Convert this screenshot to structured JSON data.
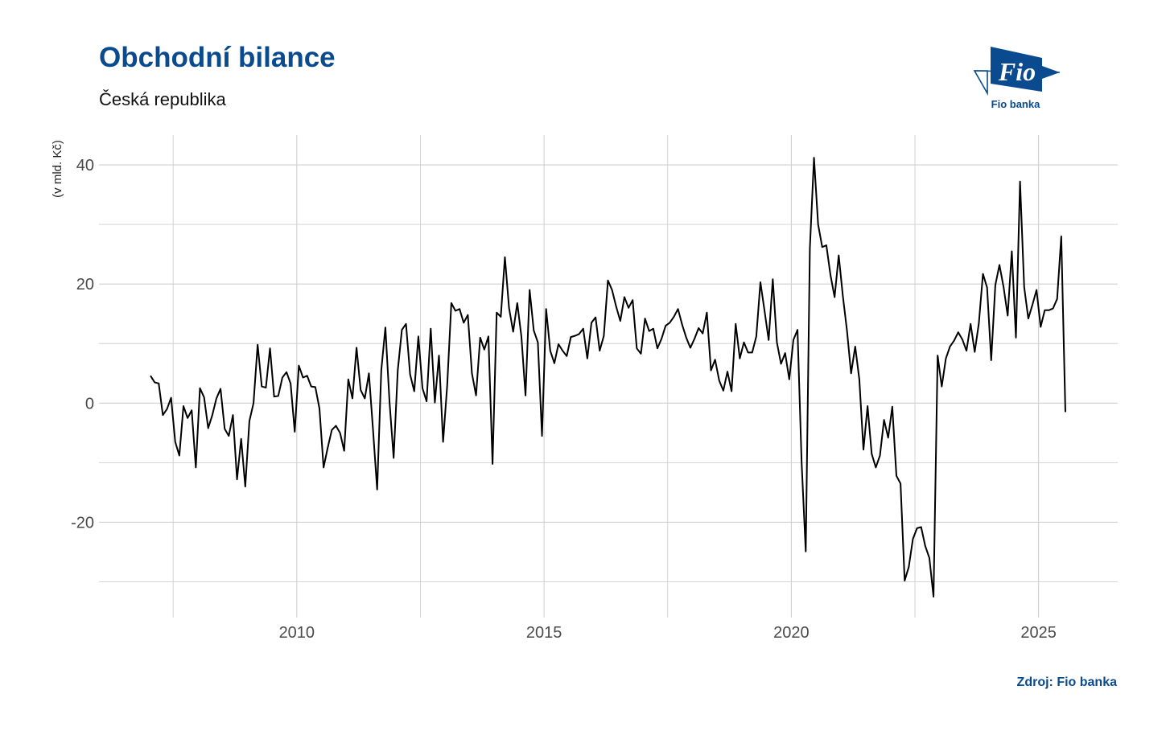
{
  "header": {
    "title": "Obchodní bilance",
    "subtitle": "Česká republika"
  },
  "logo": {
    "text": "Fio",
    "caption": "Fio banka",
    "color": "#0a4a8f",
    "icon": "fio-logo-icon"
  },
  "footer": {
    "source": "Zdroj: Fio banka"
  },
  "chart_data": {
    "type": "line",
    "title": "Obchodní bilance",
    "subtitle": "Česká republika",
    "xlabel": "",
    "ylabel": "(v mld. Kč)",
    "xlim": [
      2006.0,
      2026.6
    ],
    "ylim": [
      -36,
      45
    ],
    "xticks": [
      2010,
      2015,
      2020,
      2025
    ],
    "xtick_labels": [
      "2010",
      "2015",
      "2020",
      "2025"
    ],
    "x_minor_gridlines": [
      2007.5,
      2012.5,
      2017.5,
      2022.5
    ],
    "yticks": [
      -20,
      0,
      20,
      40
    ],
    "ytick_labels": [
      "-20",
      "0",
      "20",
      "40"
    ],
    "y_minor_gridlines": [
      -30,
      -10,
      10,
      30
    ],
    "grid": true,
    "line_color": "#000000",
    "start": "2007-01",
    "frequency": "monthly",
    "series": [
      {
        "values": [
          4.6,
          3.5,
          3.3,
          -2.0,
          -1.0,
          0.9,
          -6.5,
          -8.8,
          -0.5,
          -2.5,
          -1.2,
          -10.8,
          2.5,
          1.0,
          -4.2,
          -2.0,
          0.8,
          2.4,
          -4.3,
          -5.5,
          -2.0,
          -12.8,
          -6.0,
          -14.0,
          -3.0,
          0.0,
          9.8,
          2.8,
          2.6,
          9.2,
          1.1,
          1.2,
          4.3,
          5.2,
          3.3,
          -4.8,
          6.3,
          4.3,
          4.6,
          2.8,
          2.7,
          -0.9,
          -10.8,
          -7.5,
          -4.5,
          -3.8,
          -5.0,
          -8.0,
          4.0,
          0.8,
          9.3,
          2.2,
          0.8,
          5.0,
          -4.5,
          -14.5,
          5.5,
          12.7,
          0.2,
          -9.2,
          5.5,
          12.3,
          13.3,
          4.8,
          2.0,
          11.2,
          2.5,
          0.3,
          12.5,
          0.1,
          8.0,
          -6.5,
          3.0,
          16.8,
          15.5,
          15.8,
          13.5,
          14.8,
          5.0,
          1.3,
          11.0,
          9.0,
          11.2,
          -10.2,
          15.2,
          14.5,
          24.5,
          16.0,
          12.0,
          16.8,
          11.2,
          1.3,
          19.0,
          12.2,
          10.2,
          -5.5,
          15.8,
          8.8,
          6.7,
          9.9,
          8.8,
          7.9,
          11.1,
          11.3,
          11.6,
          12.5,
          7.5,
          13.5,
          14.4,
          8.8,
          11.3,
          20.6,
          19.0,
          16.2,
          13.8,
          17.8,
          16.0,
          17.3,
          9.2,
          8.3,
          14.2,
          12.1,
          12.5,
          9.2,
          10.8,
          13.0,
          13.5,
          14.5,
          15.8,
          13.2,
          11.0,
          9.3,
          10.8,
          12.6,
          11.7,
          15.2,
          5.5,
          7.3,
          3.8,
          2.1,
          5.3,
          2.0,
          13.3,
          7.5,
          10.2,
          8.5,
          8.5,
          11.2,
          20.3,
          15.5,
          10.6,
          20.8,
          10.2,
          6.6,
          8.4,
          4.0,
          10.6,
          12.3,
          -10.0,
          -24.9,
          26.0,
          41.2,
          30.0,
          26.2,
          26.5,
          21.5,
          17.8,
          24.8,
          18.0,
          12.2,
          5.0,
          9.5,
          4.0,
          -7.8,
          -0.5,
          -8.5,
          -10.8,
          -8.8,
          -2.8,
          -5.8,
          -0.6,
          -12.2,
          -13.5,
          -29.8,
          -27.5,
          -22.8,
          -21.0,
          -20.8,
          -24.0,
          -26.0,
          -32.5,
          8.0,
          2.8,
          7.5,
          9.5,
          10.5,
          11.9,
          10.7,
          8.8,
          13.3,
          8.6,
          13.4,
          21.7,
          19.4,
          7.2,
          19.8,
          23.2,
          19.5,
          14.7,
          25.5,
          11.0,
          37.2,
          19.5,
          14.2,
          16.5,
          19.0,
          12.8,
          15.6,
          15.6,
          15.9,
          17.5,
          28.0,
          -1.5
        ]
      }
    ]
  }
}
